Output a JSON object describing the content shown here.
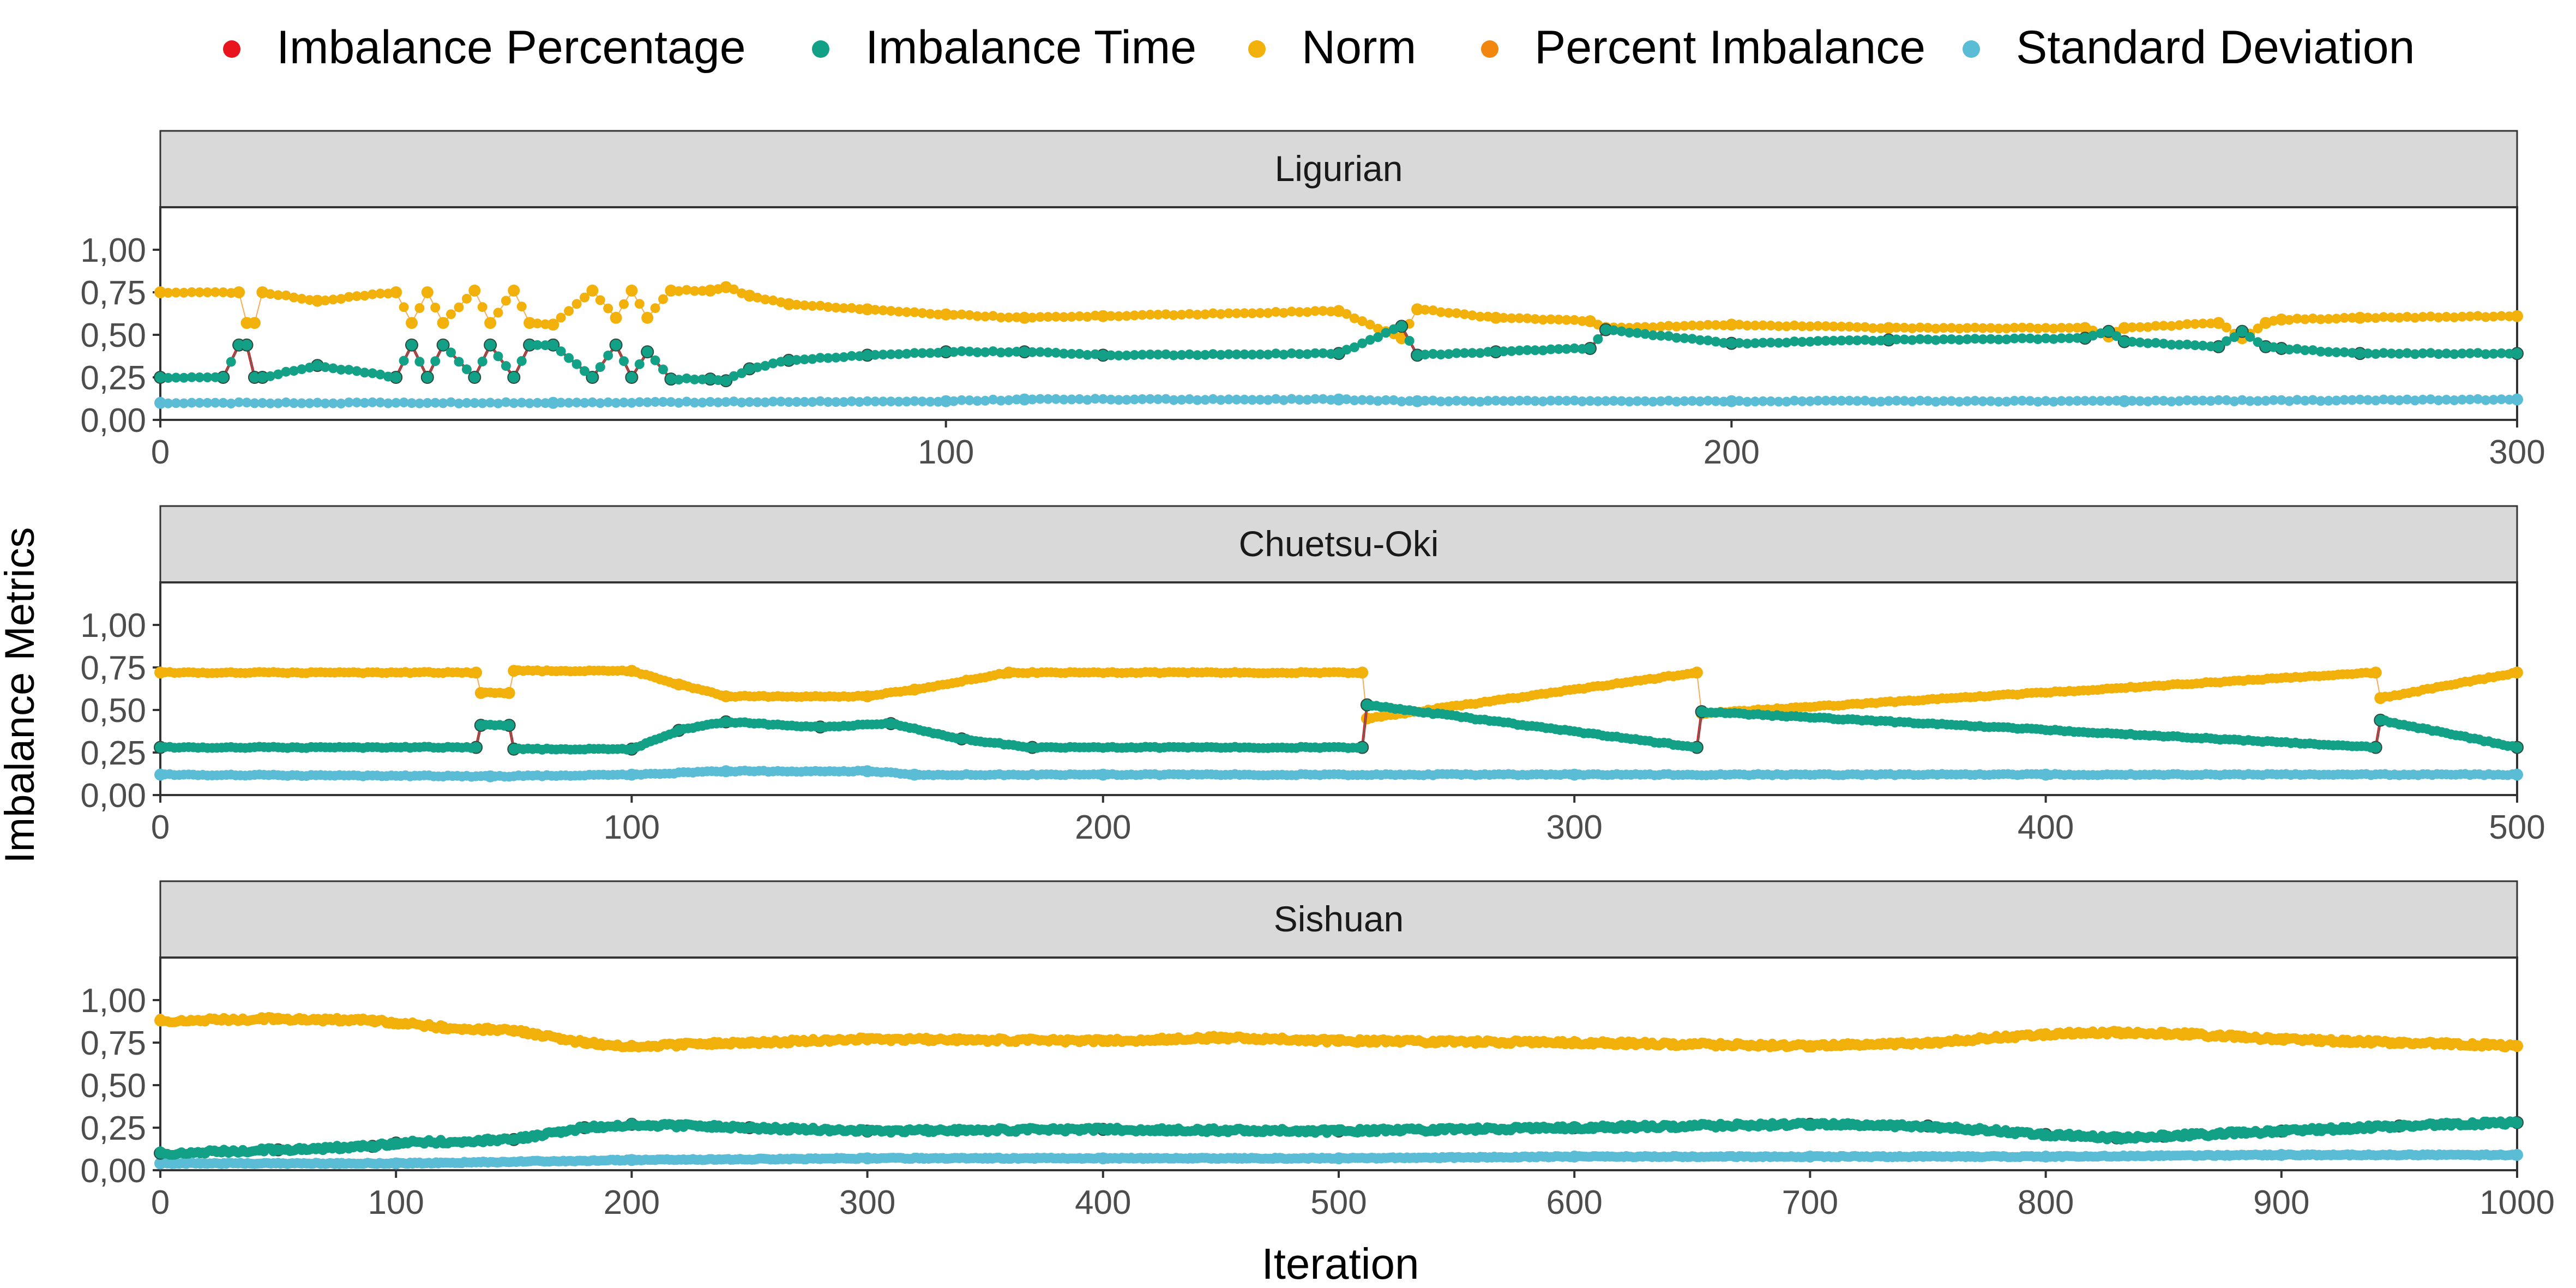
{
  "chart_data": {
    "type": "scatter",
    "ylabel": "Imbalance Metrics",
    "xlabel": "Iteration",
    "legend": {
      "placement": "top",
      "entries": [
        "Imbalance Percentage",
        "Imbalance Time",
        "Norm",
        "Percent Imbalance",
        "Standard Deviation"
      ]
    },
    "colors": {
      "Imbalance Percentage": "#e8141e",
      "Imbalance Time": "#12a086",
      "Norm": "#f2b10a",
      "Percent Imbalance": "#f28710",
      "Standard Deviation": "#5bbcd6"
    },
    "y_ticks": [
      "0,00",
      "0,25",
      "0,50",
      "0,75",
      "1,00"
    ],
    "y_tick_values": [
      0,
      0.25,
      0.5,
      0.75,
      1.0
    ],
    "ylim": [
      0,
      1.25
    ],
    "grid": false,
    "panels": [
      {
        "strip": "Ligurian",
        "xlim": [
          0,
          300
        ],
        "x_ticks": [
          0,
          100,
          200,
          300
        ],
        "series": [
          {
            "name": "Norm",
            "x": [
              0,
              10,
              11,
              12,
              13,
              20,
              30,
              32,
              34,
              36,
              40,
              42,
              45,
              47,
              50,
              55,
              58,
              60,
              62,
              65,
              70,
              72,
              75,
              80,
              90,
              100,
              110,
              120,
              150,
              158,
              160,
              170,
              182,
              184,
              200,
              220,
              245,
              248,
              250,
              262,
              265,
              268,
              270,
              280,
              300
            ],
            "y": [
              0.75,
              0.75,
              0.57,
              0.57,
              0.75,
              0.7,
              0.75,
              0.57,
              0.75,
              0.57,
              0.76,
              0.57,
              0.76,
              0.57,
              0.56,
              0.76,
              0.6,
              0.76,
              0.6,
              0.76,
              0.76,
              0.78,
              0.73,
              0.68,
              0.65,
              0.62,
              0.6,
              0.61,
              0.64,
              0.48,
              0.65,
              0.6,
              0.58,
              0.54,
              0.56,
              0.54,
              0.54,
              0.49,
              0.54,
              0.57,
              0.48,
              0.57,
              0.59,
              0.6,
              0.61
            ]
          },
          {
            "name": "Imbalance Time",
            "x": [
              0,
              8,
              10,
              11,
              12,
              13,
              20,
              30,
              32,
              34,
              36,
              40,
              42,
              45,
              47,
              50,
              55,
              58,
              60,
              62,
              65,
              70,
              72,
              75,
              80,
              90,
              100,
              110,
              120,
              150,
              158,
              160,
              170,
              182,
              184,
              200,
              220,
              245,
              248,
              250,
              262,
              265,
              268,
              270,
              280,
              300
            ],
            "y": [
              0.25,
              0.25,
              0.44,
              0.44,
              0.25,
              0.25,
              0.32,
              0.25,
              0.44,
              0.25,
              0.44,
              0.25,
              0.44,
              0.25,
              0.44,
              0.44,
              0.25,
              0.44,
              0.25,
              0.4,
              0.24,
              0.24,
              0.23,
              0.3,
              0.35,
              0.38,
              0.4,
              0.4,
              0.38,
              0.39,
              0.55,
              0.38,
              0.4,
              0.42,
              0.53,
              0.45,
              0.47,
              0.48,
              0.52,
              0.46,
              0.43,
              0.52,
              0.43,
              0.42,
              0.39,
              0.39
            ]
          },
          {
            "name": "Standard Deviation",
            "x": [
              0,
              50,
              100,
              110,
              150,
              160,
              200,
              250,
              300
            ],
            "y": [
              0.1,
              0.1,
              0.11,
              0.12,
              0.12,
              0.11,
              0.11,
              0.11,
              0.12
            ]
          }
        ]
      },
      {
        "strip": "Chuetsu-Oki",
        "xlim": [
          0,
          500
        ],
        "x_ticks": [
          0,
          100,
          200,
          300,
          400,
          500
        ],
        "series": [
          {
            "name": "Norm",
            "x": [
              0,
              67,
              68,
              74,
              75,
              100,
              110,
              120,
              150,
              160,
              180,
              255,
              256,
              326,
              327,
              470,
              471,
              500
            ],
            "y": [
              0.72,
              0.72,
              0.6,
              0.6,
              0.73,
              0.73,
              0.65,
              0.58,
              0.58,
              0.62,
              0.72,
              0.72,
              0.45,
              0.72,
              0.48,
              0.72,
              0.57,
              0.72
            ]
          },
          {
            "name": "Imbalance Time",
            "x": [
              0,
              67,
              68,
              74,
              75,
              100,
              110,
              120,
              140,
              155,
              170,
              185,
              255,
              256,
              326,
              327,
              470,
              471,
              500
            ],
            "y": [
              0.28,
              0.28,
              0.41,
              0.41,
              0.27,
              0.27,
              0.38,
              0.43,
              0.4,
              0.42,
              0.33,
              0.28,
              0.28,
              0.53,
              0.28,
              0.49,
              0.28,
              0.44,
              0.28
            ]
          },
          {
            "name": "Standard Deviation",
            "x": [
              0,
              70,
              100,
              120,
              150,
              160,
              200,
              300,
              400,
              500
            ],
            "y": [
              0.12,
              0.11,
              0.12,
              0.14,
              0.14,
              0.12,
              0.12,
              0.12,
              0.12,
              0.12
            ]
          }
        ]
      },
      {
        "strip": "Sishuan",
        "xlim": [
          0,
          1000
        ],
        "x_ticks": [
          0,
          100,
          200,
          300,
          400,
          500,
          600,
          700,
          800,
          900,
          1000
        ],
        "series": [
          {
            "name": "Norm",
            "x": [
              0,
              50,
              90,
              120,
              150,
              180,
              200,
              250,
              300,
              400,
              450,
              500,
              600,
              700,
              750,
              800,
              830,
              860,
              900,
              950,
              1000
            ],
            "y": [
              0.88,
              0.89,
              0.88,
              0.84,
              0.82,
              0.75,
              0.73,
              0.75,
              0.77,
              0.76,
              0.78,
              0.76,
              0.75,
              0.73,
              0.75,
              0.8,
              0.81,
              0.8,
              0.77,
              0.75,
              0.73
            ]
          },
          {
            "name": "Imbalance Time",
            "x": [
              0,
              50,
              90,
              100,
              150,
              180,
              200,
              250,
              300,
              400,
              500,
              600,
              700,
              750,
              800,
              830,
              850,
              900,
              950,
              1000
            ],
            "y": [
              0.1,
              0.12,
              0.14,
              0.16,
              0.18,
              0.25,
              0.27,
              0.25,
              0.23,
              0.24,
              0.23,
              0.25,
              0.27,
              0.26,
              0.21,
              0.19,
              0.2,
              0.23,
              0.26,
              0.28
            ]
          },
          {
            "name": "Standard Deviation",
            "x": [
              0,
              100,
              200,
              300,
              400,
              500,
              600,
              700,
              800,
              900,
              1000
            ],
            "y": [
              0.04,
              0.04,
              0.06,
              0.07,
              0.07,
              0.07,
              0.08,
              0.08,
              0.08,
              0.09,
              0.09
            ]
          }
        ]
      }
    ]
  }
}
